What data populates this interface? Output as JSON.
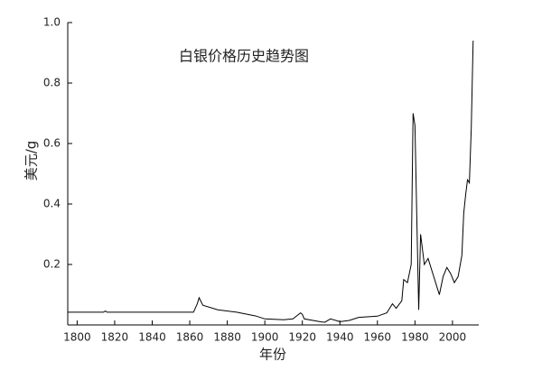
{
  "chart_data": {
    "type": "line",
    "title": "白银价格历史趋势图",
    "x_label": "年份",
    "y_label": "美元/g",
    "x": [
      1795,
      1814,
      1815,
      1816,
      1862,
      1864,
      1865,
      1867,
      1875,
      1885,
      1895,
      1900,
      1910,
      1915,
      1919,
      1920,
      1921,
      1930,
      1932,
      1935,
      1940,
      1945,
      1950,
      1960,
      1965,
      1968,
      1970,
      1973,
      1974,
      1976,
      1978,
      1979,
      1980,
      1981,
      1982,
      1983,
      1985,
      1987,
      1990,
      1992,
      1993,
      1995,
      1997,
      1999,
      2001,
      2003,
      2005,
      2006,
      2007,
      2008,
      2009,
      2010,
      2011
    ],
    "series": [
      {
        "name": "白银价格",
        "color": "#000000",
        "values": [
          0.042,
          0.042,
          0.046,
          0.042,
          0.042,
          0.07,
          0.09,
          0.065,
          0.05,
          0.042,
          0.03,
          0.02,
          0.017,
          0.02,
          0.04,
          0.035,
          0.02,
          0.01,
          0.009,
          0.02,
          0.011,
          0.015,
          0.025,
          0.029,
          0.04,
          0.07,
          0.055,
          0.08,
          0.15,
          0.14,
          0.2,
          0.7,
          0.66,
          0.35,
          0.05,
          0.3,
          0.2,
          0.22,
          0.16,
          0.12,
          0.1,
          0.16,
          0.19,
          0.17,
          0.14,
          0.16,
          0.23,
          0.37,
          0.43,
          0.48,
          0.47,
          0.65,
          0.94
        ]
      }
    ],
    "xlim": [
      1795,
      2014
    ],
    "ylim": [
      0,
      1.0
    ],
    "xticks": [
      1800,
      1820,
      1840,
      1860,
      1880,
      1900,
      1920,
      1940,
      1960,
      1980,
      2000
    ],
    "yticks": [
      0.2,
      0.4,
      0.6,
      0.8,
      {
        "value": 1,
        "label": "1.0"
      }
    ]
  }
}
